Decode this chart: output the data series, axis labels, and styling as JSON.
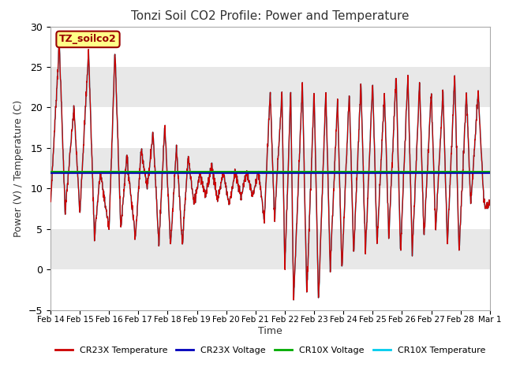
{
  "title": "Tonzi Soil CO2 Profile: Power and Temperature",
  "xlabel": "Time",
  "ylabel": "Power (V) / Temperature (C)",
  "ylim": [
    -5,
    30
  ],
  "xlim": [
    0,
    15
  ],
  "yticks": [
    -5,
    0,
    5,
    10,
    15,
    20,
    25,
    30
  ],
  "xtick_labels": [
    "Feb 14",
    "Feb 15",
    "Feb 16",
    "Feb 17",
    "Feb 18",
    "Feb 19",
    "Feb 20",
    "Feb 21",
    "Feb 22",
    "Feb 23",
    "Feb 24",
    "Feb 25",
    "Feb 26",
    "Feb 27",
    "Feb 28",
    "Mar 1"
  ],
  "voltage_cr23x": 11.9,
  "voltage_cr10x": 12.05,
  "annotation_text": "TZ_soilco2",
  "legend_entries": [
    "CR23X Temperature",
    "CR23X Voltage",
    "CR10X Voltage",
    "CR10X Temperature"
  ],
  "colors": {
    "cr23x_temp": "#cc0000",
    "cr23x_voltage": "#0000bb",
    "cr10x_voltage": "#00aa00",
    "cr10x_temp": "#00ccee"
  },
  "band_colors": [
    "#ffffff",
    "#e8e8e8"
  ]
}
